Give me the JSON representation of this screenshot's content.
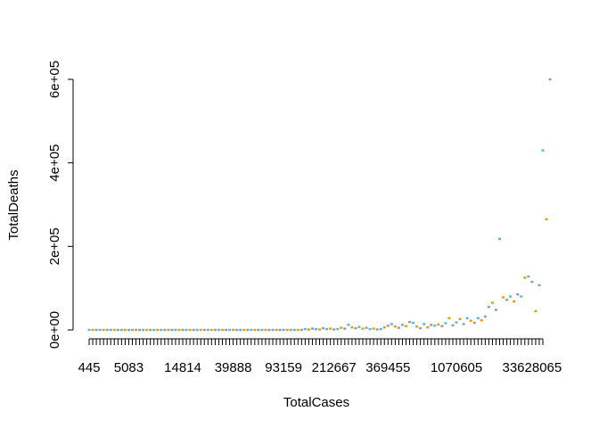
{
  "chart_data": {
    "type": "scatter",
    "xlabel": "TotalCases",
    "ylabel": "TotalDeaths",
    "x_axis": {
      "kind": "categorical",
      "category_count": 127,
      "tick_labels": [
        {
          "index": 0,
          "label": "445"
        },
        {
          "index": 11,
          "label": "5083"
        },
        {
          "index": 26,
          "label": "14814"
        },
        {
          "index": 40,
          "label": "39888"
        },
        {
          "index": 54,
          "label": "93159"
        },
        {
          "index": 68,
          "label": "212667"
        },
        {
          "index": 83,
          "label": "369455"
        },
        {
          "index": 102,
          "label": "1070605"
        },
        {
          "index": 123,
          "label": "33628065"
        }
      ]
    },
    "y_axis": {
      "ylim": [
        0,
        600000
      ],
      "ticks": [
        {
          "value": 0,
          "label": "0e+00"
        },
        {
          "value": 200000,
          "label": "2e+05"
        },
        {
          "value": 400000,
          "label": "4e+05"
        },
        {
          "value": 600000,
          "label": "6e+05"
        }
      ]
    },
    "grid": false,
    "legend": "none",
    "colors": [
      "#56b4e9",
      "#e69f00",
      "#999999"
    ],
    "y": [
      0,
      0,
      0,
      0,
      0,
      0,
      0,
      0,
      0,
      0,
      0,
      0,
      0,
      0,
      0,
      0,
      0,
      0,
      0,
      0,
      0,
      0,
      0,
      0,
      0,
      0,
      0,
      0,
      0,
      0,
      0,
      0,
      0,
      0,
      0,
      0,
      0,
      0,
      0,
      0,
      0,
      0,
      0,
      0,
      0,
      0,
      0,
      0,
      0,
      0,
      0,
      0,
      0,
      0,
      0,
      0,
      0,
      0,
      0,
      0,
      2000,
      1000,
      3000,
      2000,
      1000,
      4000,
      2000,
      3000,
      1000,
      2000,
      5000,
      3000,
      12000,
      6000,
      4000,
      7000,
      3000,
      5000,
      2000,
      3000,
      1000,
      2000,
      6000,
      10000,
      14000,
      8000,
      5000,
      12000,
      9000,
      19000,
      17000,
      8000,
      4000,
      14000,
      6000,
      12000,
      10000,
      13000,
      9000,
      16000,
      28000,
      11000,
      18000,
      26000,
      14000,
      28000,
      22000,
      17000,
      28000,
      23000,
      32000,
      55000,
      65000,
      48000,
      218000,
      78000,
      72000,
      80000,
      68000,
      85000,
      80000,
      125000,
      128000,
      115000,
      45000,
      107000,
      430000,
      265000,
      600000
    ]
  }
}
